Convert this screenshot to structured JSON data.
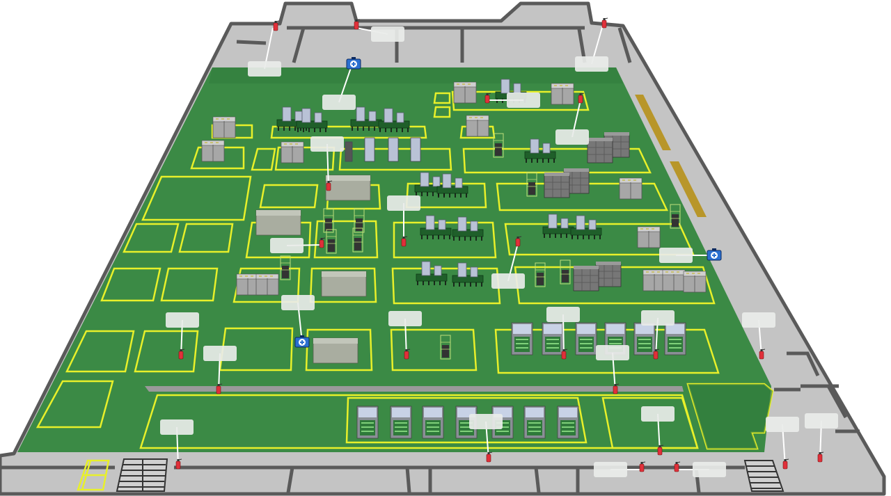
{
  "map": {
    "colors": {
      "floor": "#3b8a45",
      "floor_dark": "#2f7a3a",
      "corridor": "#c4c4c4",
      "wall": "#5a5a5a",
      "zone_outline": "#e8f02a",
      "hazard_stripe": "#b8962a",
      "extinguisher": "#e0303a",
      "first_aid": "#2a6fd0",
      "label_box": "#e9ece9",
      "machine_light": "#b9c2d6",
      "machine_dark": "#6a6a6a",
      "conveyor": "#1f5f2a",
      "storage_rack": "#a9a9a9",
      "container": "#a9ada0"
    },
    "legend_icons": {
      "extinguisher": "fire-extinguisher-icon",
      "first_aid": "first-aid-kit-icon"
    },
    "counts": {
      "fire_extinguishers": 24,
      "first_aid_kits": 3,
      "callout_labels": 30
    }
  }
}
